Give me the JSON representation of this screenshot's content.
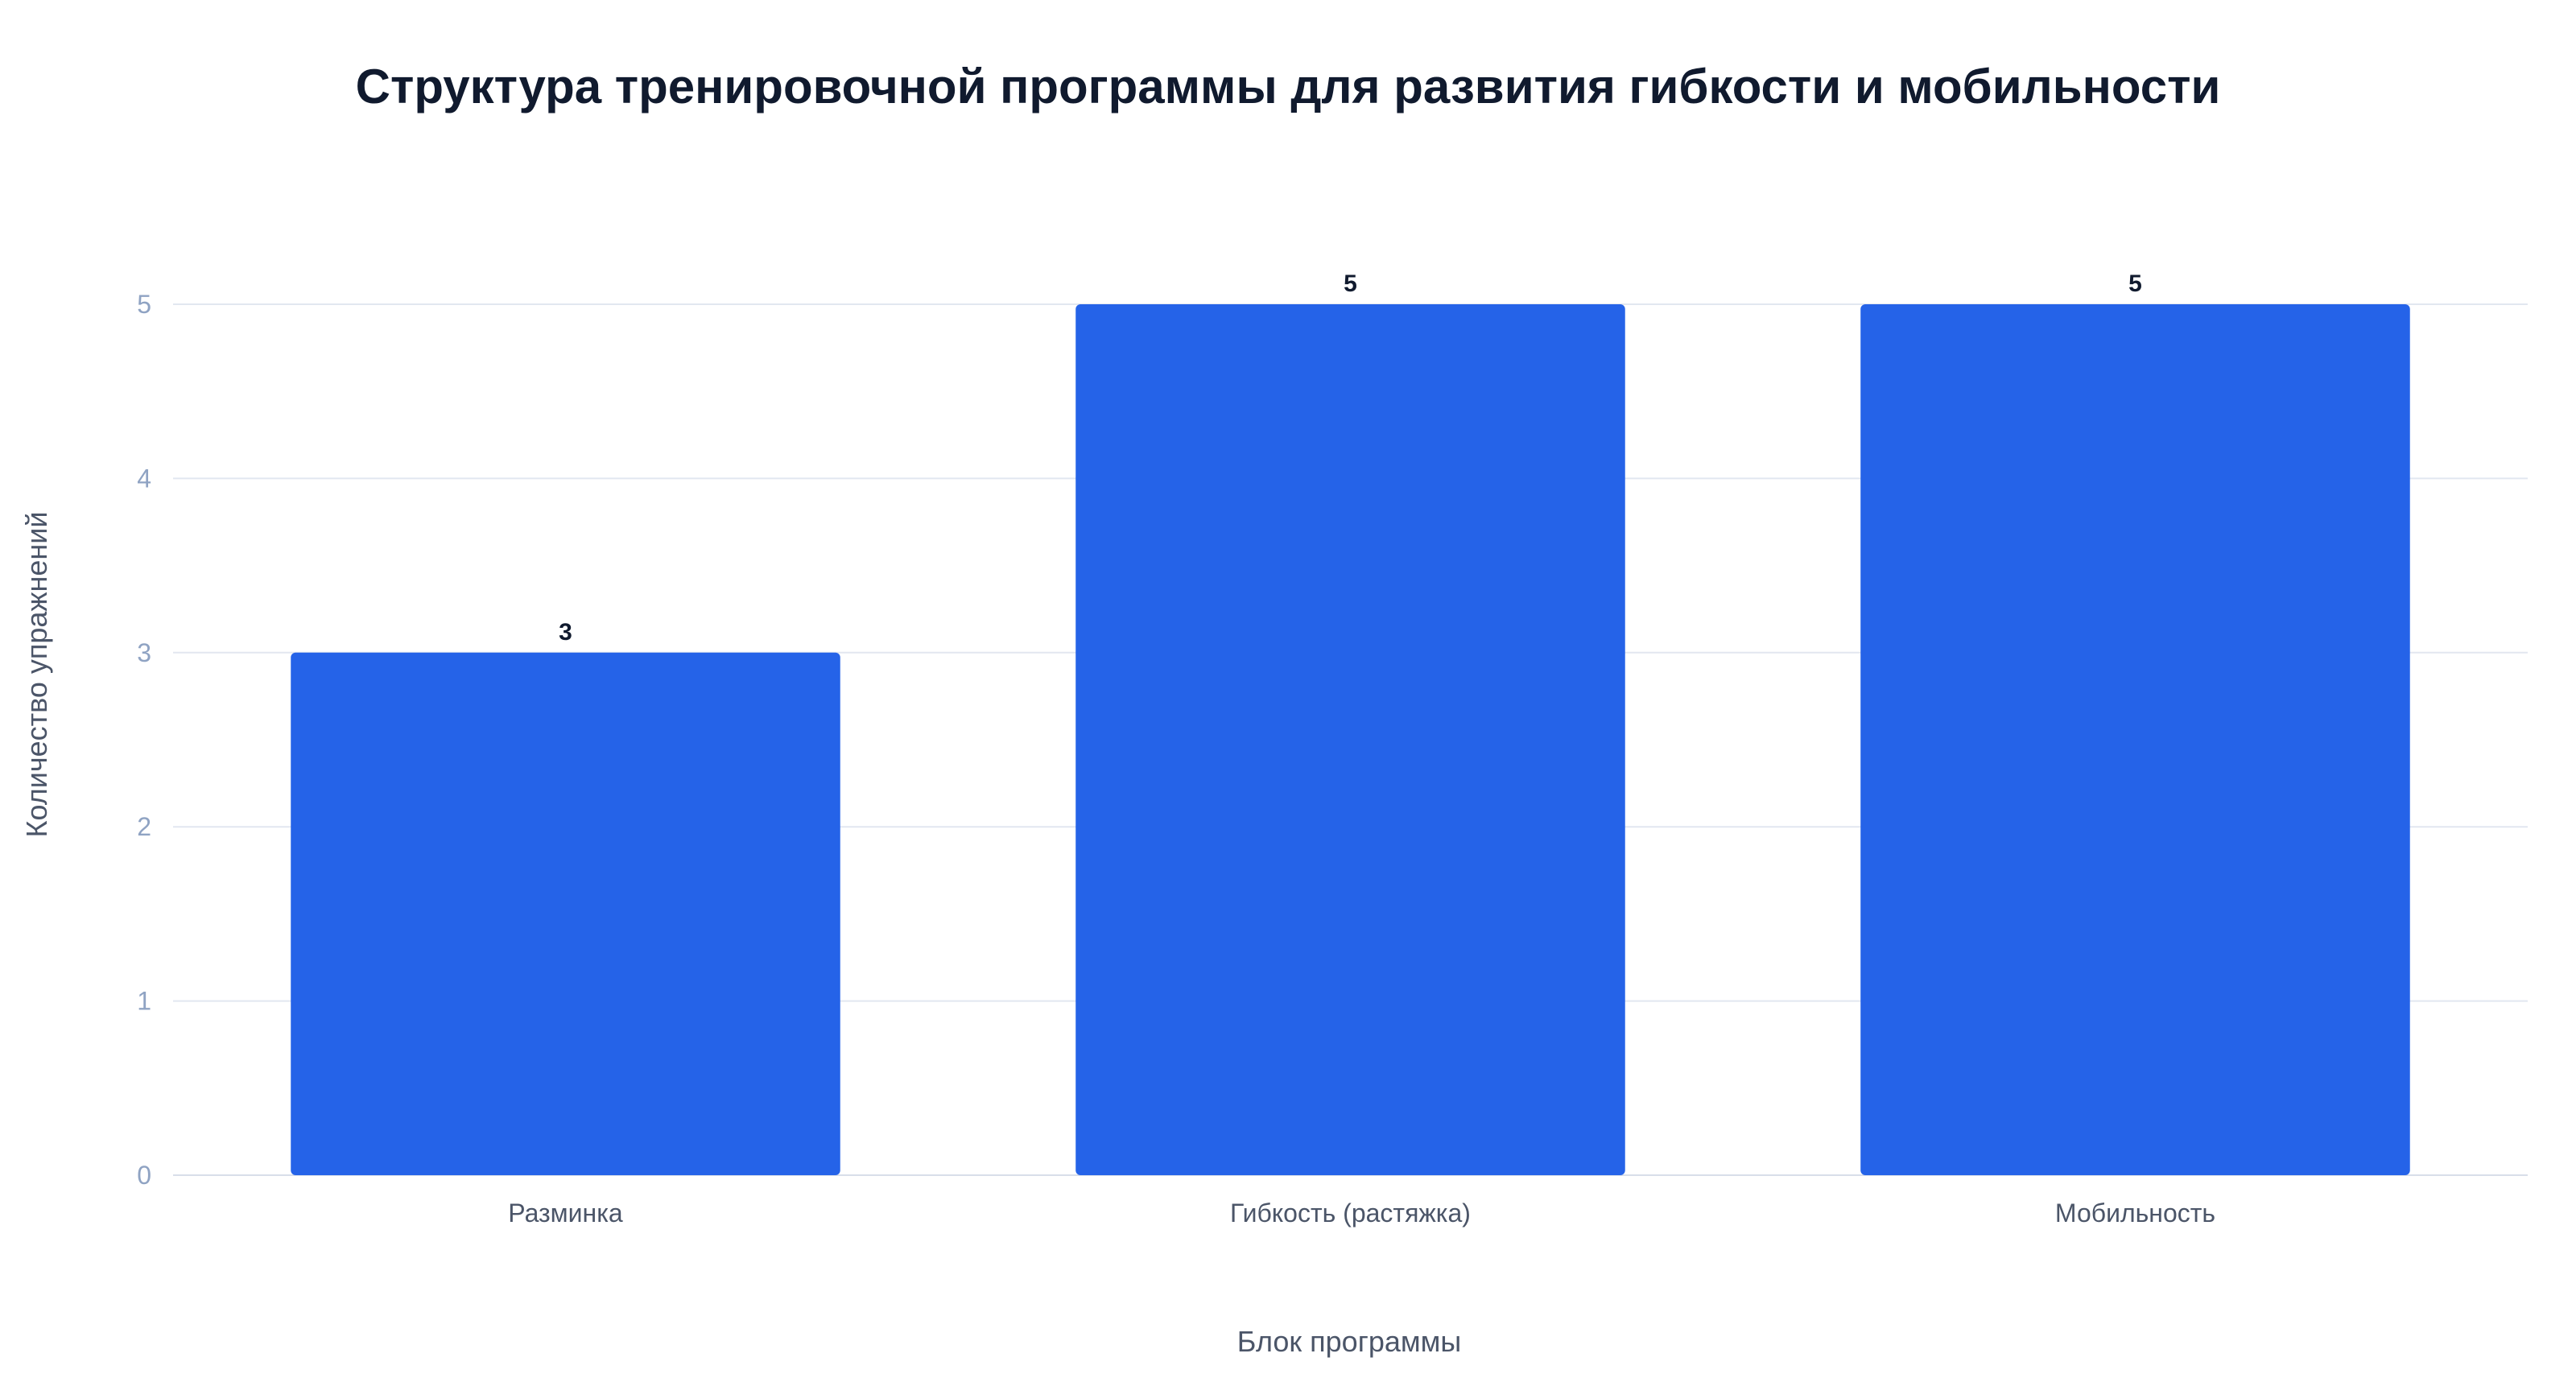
{
  "chart_data": {
    "type": "bar",
    "title": "Структура тренировочной программы для развития гибкости и мобильности",
    "xlabel": "Блок программы",
    "ylabel": "Количество упражнений",
    "categories": [
      "Разминка",
      "Гибкость (растяжка)",
      "Мобильность"
    ],
    "values": [
      3,
      5,
      5
    ],
    "ylim": [
      0,
      5
    ],
    "yticks": [
      0,
      1,
      2,
      3,
      4,
      5
    ],
    "grid": true,
    "legend": "none",
    "bar_color": "#2563e8"
  }
}
